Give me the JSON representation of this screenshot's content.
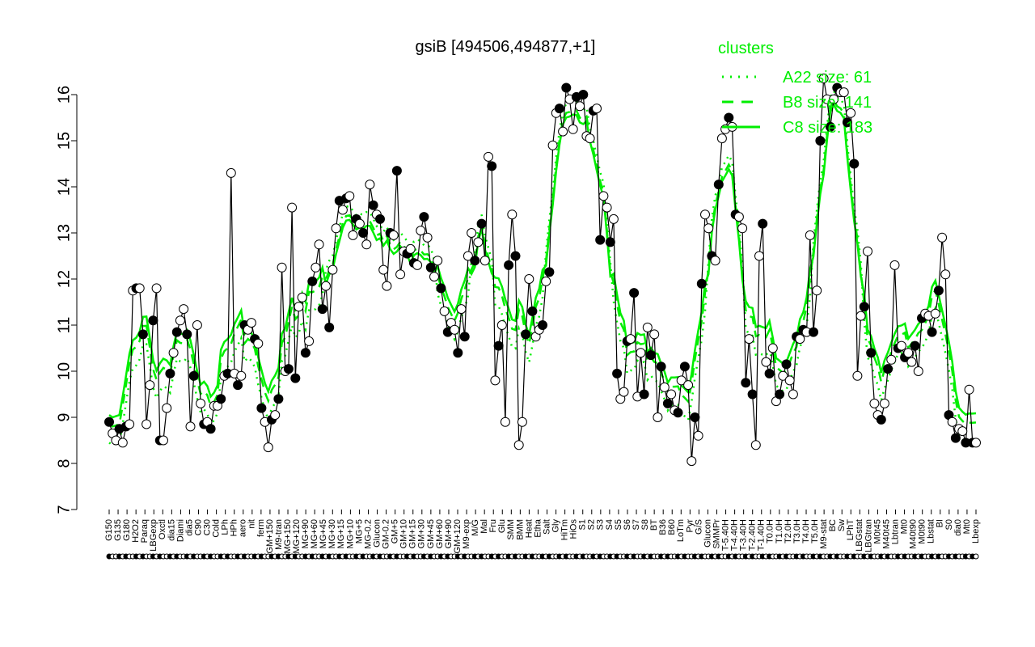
{
  "chart_data": {
    "type": "line",
    "title": "gsiB [494506,494877,+1]",
    "xlabel": "",
    "ylabel": "",
    "ylim": [
      7,
      16
    ],
    "yticks": [
      7,
      8,
      9,
      10,
      11,
      12,
      13,
      14,
      15,
      16
    ],
    "grid": false,
    "legend": {
      "title": "clusters",
      "placement": "top-right",
      "entries": [
        {
          "label": "A22 size: 61",
          "style": "dotted",
          "color": "#00ee00"
        },
        {
          "label": "B8 size: 141",
          "style": "dashed",
          "color": "#00ee00"
        },
        {
          "label": "C8 size: 183",
          "style": "solid",
          "color": "#00ee00"
        }
      ]
    },
    "x_tick_labels": [
      "G150",
      "G135",
      "G180",
      "H2O2",
      "Paraq",
      "LBGexp",
      "Oxctl",
      "dia15",
      "Diami",
      "dia5",
      "C90",
      "C30",
      "Cold",
      "LPh",
      "HPh",
      "aero",
      "nit",
      "ferm",
      "GM+150",
      "M9-tran",
      "MG+150",
      "MG+120",
      "MG+90",
      "MG+60",
      "MG+45",
      "MG+30",
      "MG+15",
      "MG+10",
      "MG+5",
      "MG-0.2",
      "Glucon",
      "GM-0.2",
      "GM+5",
      "GM+10",
      "GM+15",
      "GM+30",
      "GM+45",
      "GM+60",
      "GM+90",
      "GM+120",
      "M9-exp",
      "M/G",
      "Mal",
      "Fru",
      "Glu",
      "SMM",
      "BMM",
      "Heat",
      "Etha",
      "Salt",
      "Gly",
      "HiTm",
      "HiOs",
      "S1",
      "S2",
      "S3",
      "S4",
      "S5",
      "S6",
      "S7",
      "S8",
      "BT",
      "B36",
      "B60",
      "LoTm",
      "Pyr",
      "G/S",
      "Glucon",
      "SMMPr",
      "T-5.40H",
      "T-4.40H",
      "T-3.40H",
      "T-2.40H",
      "T-1.40H",
      "T0.0H",
      "T1.0H",
      "T2.0H",
      "T3.0H",
      "T4.0H",
      "T5.0H",
      "M9-stat",
      "BC",
      "Sw",
      "LPhT",
      "LBGstat",
      "LBGtran",
      "M0t45",
      "M40t45",
      "Lbtran",
      "Mt0",
      "M40t90",
      "M0t90",
      "Lbstat",
      "BI",
      "S0",
      "dia0",
      "Mt0",
      "Lbexp"
    ],
    "series": [
      {
        "style": "black line with open and filled circles",
        "values": [
          8.9,
          8.65,
          8.5,
          8.75,
          8.45,
          8.8,
          8.85,
          11.75,
          11.8,
          11.8,
          10.8,
          8.85,
          9.7,
          11.1,
          11.8,
          8.5,
          8.5,
          9.2,
          9.95,
          10.4,
          10.85,
          11.1,
          11.35,
          10.8,
          8.8,
          9.9,
          11.0,
          9.3,
          8.85,
          8.9,
          8.75,
          9.25,
          9.25,
          9.4,
          9.9,
          9.95,
          14.3,
          9.95,
          9.7,
          9.9,
          11.0,
          10.9,
          11.05,
          10.7,
          10.6,
          9.2,
          8.9,
          8.35,
          8.95,
          9.05,
          9.4,
          12.25,
          10.0,
          10.05,
          13.55,
          9.85,
          11.4,
          11.6,
          10.4,
          10.65,
          11.95,
          12.25,
          12.75,
          11.35,
          11.85,
          10.95,
          12.2,
          13.1,
          13.7,
          13.5,
          13.75,
          13.8,
          12.95,
          13.3,
          13.2,
          13.0,
          12.75,
          14.05,
          13.6,
          13.4,
          13.3,
          12.2,
          11.85,
          13.0,
          12.95,
          14.35,
          12.1,
          12.6,
          12.55,
          12.65,
          12.35,
          12.3,
          13.05,
          13.35,
          12.9,
          12.25,
          12.05,
          12.4,
          11.8,
          11.3,
          10.85,
          11.05,
          10.9,
          10.4,
          11.35,
          10.75,
          12.5,
          13.0,
          12.4,
          12.8,
          13.2,
          12.4,
          14.65,
          14.45,
          9.8,
          10.55,
          11.0,
          8.9,
          12.3,
          13.4,
          12.5,
          8.4,
          8.9,
          10.8,
          12.0,
          11.3,
          10.75,
          10.9,
          11.0,
          11.95,
          12.15,
          14.9,
          15.6,
          15.7,
          15.2,
          16.15,
          15.9,
          15.25,
          15.95,
          15.75,
          16.0,
          15.1,
          15.05,
          15.65,
          15.7,
          12.85,
          13.8,
          13.55,
          12.8,
          13.3,
          9.95,
          9.4,
          9.55,
          10.65,
          10.7,
          11.7,
          9.45,
          10.4,
          9.5,
          10.95,
          10.35,
          10.8,
          9.0,
          10.1,
          9.65,
          9.3,
          9.5,
          9.15,
          9.1,
          9.8,
          10.1,
          9.7,
          8.05,
          9.0,
          8.6,
          11.9,
          13.4,
          13.1,
          12.5,
          12.4,
          14.05,
          15.05,
          15.25,
          15.5,
          15.3,
          13.4,
          13.35,
          13.1,
          9.75,
          10.7,
          9.5,
          8.4,
          12.5,
          13.2,
          10.2,
          9.95,
          10.5,
          9.35,
          9.5,
          9.9,
          10.15,
          9.8,
          9.5,
          10.75,
          10.7,
          10.9,
          10.85,
          12.95,
          10.85,
          11.75,
          15.0,
          16.35,
          15.9,
          15.3,
          15.9,
          16.15,
          16.05,
          16.05,
          15.4,
          15.6,
          14.5,
          9.9,
          11.2,
          11.4,
          12.6,
          10.4,
          9.3,
          9.05,
          8.95,
          9.3,
          10.05,
          10.25,
          12.3,
          10.5,
          10.55,
          10.3,
          10.4,
          10.2,
          10.55,
          10.0,
          11.15,
          11.25,
          11.2,
          10.85,
          11.25,
          11.75,
          12.9,
          12.1,
          9.05,
          8.9,
          8.55,
          8.75,
          8.7,
          8.45,
          9.6,
          8.45,
          8.45
        ]
      }
    ]
  }
}
